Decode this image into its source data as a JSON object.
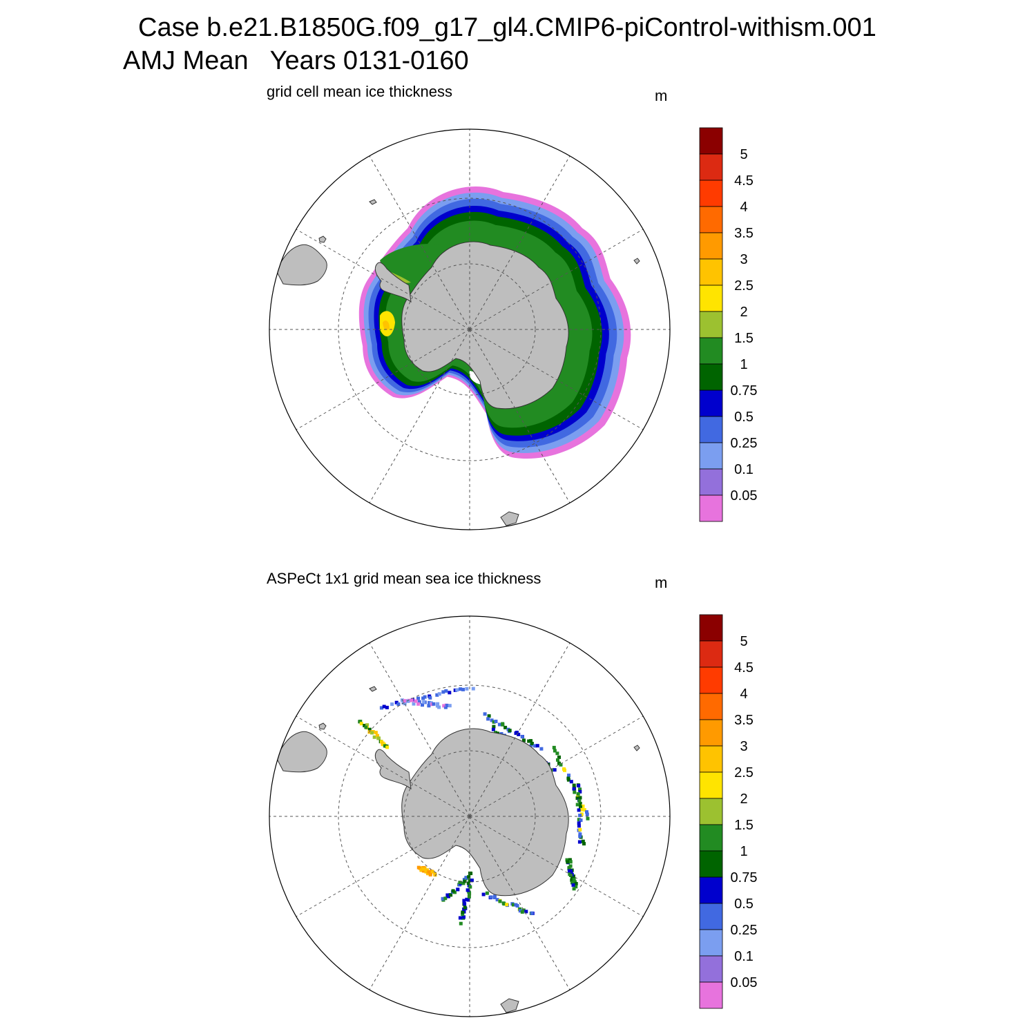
{
  "header": {
    "title": "Case b.e21.B1850G.f09_g17_gl4.CMIP6-piControl-withism.001",
    "subtitle": "AMJ Mean   Years 0131-0160"
  },
  "colorbar": {
    "levels": [
      "5",
      "4.5",
      "4",
      "3.5",
      "3",
      "2.5",
      "2",
      "1.5",
      "1",
      "0.75",
      "0.5",
      "0.25",
      "0.1",
      "0.05"
    ],
    "colors": [
      "#8b0000",
      "#dc2a12",
      "#ff3b00",
      "#ff6a00",
      "#ff9a00",
      "#ffc300",
      "#ffe400",
      "#9cc130",
      "#228b22",
      "#006400",
      "#0000cd",
      "#4169e1",
      "#7b9ef0",
      "#9370db",
      "#e773dd"
    ]
  },
  "panels": [
    {
      "title": "grid cell mean ice thickness",
      "unit": "m",
      "field": "model"
    },
    {
      "title": "ASPeCt 1x1 grid mean sea ice thickness",
      "unit": "m",
      "field": "observations"
    }
  ],
  "colors": {
    "land": "#bebebe",
    "coast": "#333333",
    "grid": "#555555"
  }
}
